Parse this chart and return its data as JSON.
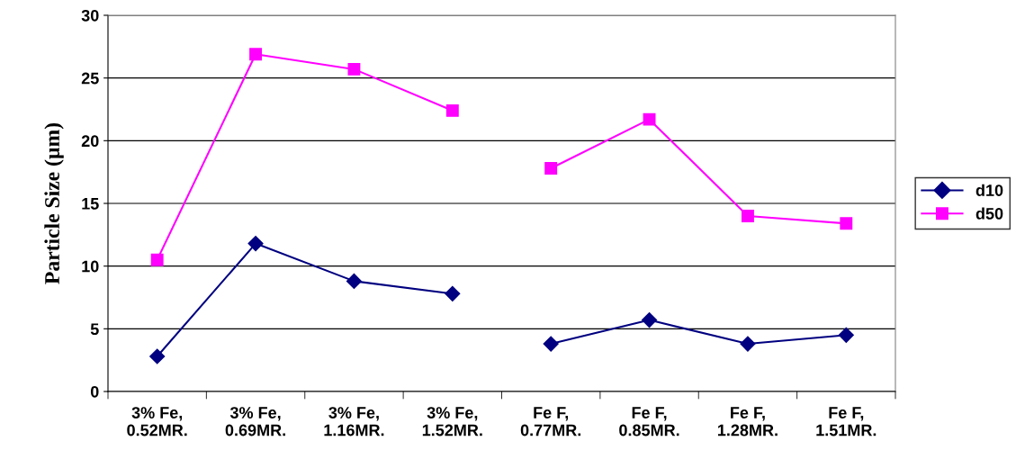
{
  "chart_data": {
    "type": "line",
    "ylabel": "Particle Size (µm)",
    "categories": [
      "3% Fe,\n0.52MR.",
      "3% Fe,\n0.69MR.",
      "3% Fe,\n1.16MR.",
      "3% Fe,\n1.52MR.",
      "Fe F,\n0.77MR.",
      "Fe F,\n0.85MR.",
      "Fe F,\n1.28MR.",
      "Fe F,\n1.51MR."
    ],
    "series": [
      {
        "name": "d10",
        "color": "#000080",
        "marker": "diamond",
        "values": [
          2.8,
          11.8,
          8.8,
          7.8,
          null,
          null,
          null,
          null
        ]
      },
      {
        "color": "#000080",
        "marker": "diamond",
        "values": [
          null,
          null,
          null,
          null,
          3.8,
          5.7,
          3.8,
          4.5
        ]
      },
      {
        "name": "d50",
        "color": "#ff00ff",
        "marker": "square",
        "values": [
          10.5,
          26.9,
          25.7,
          22.4,
          null,
          null,
          null,
          null
        ]
      },
      {
        "color": "#ff00ff",
        "marker": "square",
        "values": [
          null,
          null,
          null,
          null,
          17.8,
          21.7,
          14.0,
          13.4
        ]
      }
    ],
    "ylim": [
      0,
      30
    ],
    "yticks": [
      0,
      5,
      10,
      15,
      20,
      25,
      30
    ],
    "grid": "y",
    "legend": "right"
  }
}
